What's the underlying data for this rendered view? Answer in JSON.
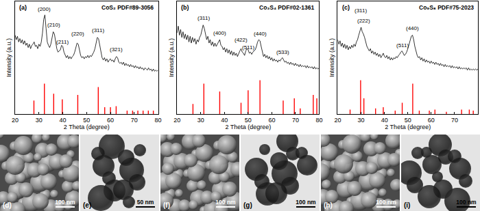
{
  "chart_data": [
    {
      "type": "line",
      "panel_label": "(a)",
      "title": "CoS₂ PDF#89-3056",
      "x_label": "2 Theta (degree)",
      "y_label": "Intensity (a.u.)",
      "xlim": [
        20,
        80
      ],
      "xticks": [
        20,
        30,
        40,
        50,
        60,
        70,
        80
      ],
      "ylim": [
        0,
        100
      ],
      "tick_labels": "x",
      "grid": false,
      "series": [
        {
          "type": "line",
          "color": "#000000",
          "x": [
            20,
            20.5,
            21,
            21.5,
            22,
            22.5,
            23,
            23.5,
            24,
            24.5,
            25,
            25.5,
            26,
            26.5,
            27,
            27.5,
            28,
            28.5,
            29,
            29.5,
            30,
            30.5,
            31,
            31.5,
            32,
            32.5,
            33,
            33.5,
            34,
            34.5,
            35,
            35.5,
            36,
            36.5,
            37,
            37.5,
            38,
            38.5,
            39,
            39.5,
            40,
            40.5,
            41,
            41.5,
            42,
            42.5,
            43,
            43.5,
            44,
            44.5,
            45,
            45.5,
            46,
            46.5,
            47,
            47.5,
            48,
            48.5,
            49,
            49.5,
            50,
            50.5,
            51,
            51.5,
            52,
            52.5,
            53,
            53.5,
            54,
            54.5,
            55,
            55.5,
            56,
            56.5,
            57,
            57.5,
            58,
            58.5,
            59,
            59.5,
            60,
            60.5,
            61,
            61.5,
            62,
            62.5,
            63,
            63.5,
            64,
            64.5,
            65,
            65.5,
            66,
            66.5,
            67,
            67.5,
            68,
            68.5,
            69,
            69.5,
            70,
            70.5,
            71,
            71.5,
            72,
            72.5,
            73,
            73.5,
            74,
            74.5,
            75,
            75.5,
            76,
            76.5,
            77,
            77.5,
            78,
            78.5,
            79,
            79.5,
            80
          ],
          "values": [
            70,
            66,
            69,
            64,
            67,
            63,
            66,
            62,
            65,
            61,
            63,
            59,
            62,
            58,
            61,
            62,
            64,
            60,
            61,
            58,
            62,
            60,
            64,
            72,
            84,
            88,
            76,
            64,
            61,
            59,
            62,
            68,
            73,
            71,
            63,
            58,
            55,
            56,
            57,
            61,
            60,
            55,
            52,
            50,
            52,
            49,
            51,
            49,
            51,
            52,
            55,
            59,
            63,
            62,
            57,
            52,
            50,
            51,
            49,
            51,
            50,
            52,
            50,
            52,
            51,
            53,
            55,
            58,
            63,
            68,
            67,
            61,
            54,
            50,
            48,
            50,
            47,
            49,
            46,
            48,
            49,
            47,
            48,
            46,
            49,
            51,
            50,
            46,
            45,
            46,
            44,
            46,
            43,
            45,
            43,
            44,
            42,
            44,
            42,
            43,
            41,
            43,
            41,
            42,
            40,
            42,
            40,
            41,
            39,
            41,
            40,
            39,
            41,
            39,
            40,
            38,
            40,
            38,
            39,
            38,
            39
          ]
        },
        {
          "type": "bar",
          "color": "#ff0000",
          "x": [
            27.9,
            32.3,
            36.2,
            39.8,
            46.3,
            54.9,
            57.6,
            60.0,
            62.4,
            67.0,
            69.3,
            71.5,
            73.7,
            75.9,
            78.0
          ],
          "values": [
            12,
            27,
            18,
            13,
            17,
            24,
            6,
            6,
            7,
            3,
            3,
            3,
            3,
            3,
            3
          ]
        }
      ],
      "annotations": [
        {
          "text": "(200)",
          "x": 32.3,
          "y": 93
        },
        {
          "text": "(210)",
          "x": 36.2,
          "y": 79
        },
        {
          "text": "(211)",
          "x": 39.8,
          "y": 64
        },
        {
          "text": "(220)",
          "x": 46.3,
          "y": 71
        },
        {
          "text": "(311)",
          "x": 54.9,
          "y": 74
        },
        {
          "text": "(321)",
          "x": 62.4,
          "y": 57
        }
      ]
    },
    {
      "type": "line",
      "panel_label": "(b)",
      "title": "Co₃S₄ PDF#02-1361",
      "x_label": "2 Theta (degree)",
      "y_label": "Intensity (a.u.)",
      "xlim": [
        20,
        80
      ],
      "xticks": [
        20,
        30,
        40,
        50,
        60,
        70,
        80
      ],
      "ylim": [
        0,
        100
      ],
      "tick_labels": "x",
      "grid": false,
      "series": [
        {
          "type": "line",
          "color": "#000000",
          "x": [
            20,
            20.5,
            21,
            21.5,
            22,
            22.5,
            23,
            23.5,
            24,
            24.5,
            25,
            25.5,
            26,
            26.5,
            27,
            27.5,
            28,
            28.5,
            29,
            29.5,
            30,
            30.5,
            31,
            31.5,
            32,
            32.5,
            33,
            33.5,
            34,
            34.5,
            35,
            35.5,
            36,
            36.5,
            37,
            37.5,
            38,
            38.5,
            39,
            39.5,
            40,
            40.5,
            41,
            41.5,
            42,
            42.5,
            43,
            43.5,
            44,
            44.5,
            45,
            45.5,
            46,
            46.5,
            47,
            47.5,
            48,
            48.5,
            49,
            49.5,
            50,
            50.5,
            51,
            51.5,
            52,
            52.5,
            53,
            53.5,
            54,
            54.5,
            55,
            55.5,
            56,
            56.5,
            57,
            57.5,
            58,
            58.5,
            59,
            59.5,
            60,
            60.5,
            61,
            61.5,
            62,
            62.5,
            63,
            63.5,
            64,
            64.5,
            65,
            65.5,
            66,
            66.5,
            67,
            67.5,
            68,
            68.5,
            69,
            69.5,
            70,
            70.5,
            71,
            71.5,
            72,
            72.5,
            73,
            73.5,
            74,
            74.5,
            75,
            75.5,
            76,
            76.5,
            77,
            77.5,
            78,
            78.5,
            79,
            79.5,
            80
          ],
          "values": [
            72,
            78,
            70,
            75,
            68,
            73,
            67,
            71,
            66,
            70,
            64,
            69,
            63,
            68,
            64,
            67,
            62,
            66,
            64,
            68,
            70,
            74,
            79,
            76,
            71,
            66,
            69,
            63,
            66,
            61,
            64,
            60,
            63,
            60,
            62,
            64,
            66,
            61,
            60,
            57,
            59,
            55,
            58,
            54,
            57,
            53,
            56,
            52,
            55,
            52,
            54,
            51,
            54,
            56,
            58,
            55,
            54,
            52,
            56,
            58,
            57,
            54,
            55,
            53,
            55,
            56,
            57,
            60,
            64,
            66,
            65,
            60,
            55,
            51,
            53,
            50,
            52,
            49,
            51,
            48,
            50,
            47,
            49,
            47,
            48,
            46,
            48,
            47,
            49,
            50,
            48,
            46,
            47,
            45,
            46,
            44,
            46,
            44,
            45,
            43,
            45,
            43,
            44,
            42,
            44,
            42,
            43,
            42,
            43,
            41,
            43,
            41,
            42,
            41,
            42,
            40,
            42,
            40,
            41,
            40,
            41
          ]
        },
        {
          "type": "bar",
          "color": "#ff0000",
          "x": [
            26.7,
            31.3,
            38.0,
            47.0,
            50.0,
            55.0,
            64.8,
            69.5,
            72.0,
            77.5,
            79.0
          ],
          "values": [
            9,
            27,
            20,
            10,
            21,
            30,
            12,
            14,
            5,
            17,
            14
          ]
        }
      ],
      "annotations": [
        {
          "text": "(311)",
          "x": 31.3,
          "y": 85
        },
        {
          "text": "(400)",
          "x": 38.0,
          "y": 72
        },
        {
          "text": "(422)",
          "x": 47.0,
          "y": 66
        },
        {
          "text": "(511)",
          "x": 50.0,
          "y": 59
        },
        {
          "text": "(440)",
          "x": 55.0,
          "y": 71
        },
        {
          "text": "(533)",
          "x": 64.8,
          "y": 55
        }
      ]
    },
    {
      "type": "line",
      "panel_label": "(c)",
      "title": "Co₉S₈ PDF#75-2023",
      "x_label": "2 Theta (degree)",
      "y_label": "Intensity (a.u.)",
      "xlim": [
        20,
        80
      ],
      "xticks": [
        20,
        30,
        40,
        50,
        60,
        70,
        80
      ],
      "ylim": [
        0,
        100
      ],
      "tick_labels": "x",
      "grid": false,
      "series": [
        {
          "type": "line",
          "color": "#000000",
          "x": [
            20,
            20.5,
            21,
            21.5,
            22,
            22.5,
            23,
            23.5,
            24,
            24.5,
            25,
            25.5,
            26,
            26.5,
            27,
            27.5,
            28,
            28.5,
            29,
            29.5,
            30,
            30.5,
            31,
            31.5,
            32,
            32.5,
            33,
            33.5,
            34,
            34.5,
            35,
            35.5,
            36,
            36.5,
            37,
            37.5,
            38,
            38.5,
            39,
            39.5,
            40,
            40.5,
            41,
            41.5,
            42,
            42.5,
            43,
            43.5,
            44,
            44.5,
            45,
            45.5,
            46,
            46.5,
            47,
            47.5,
            48,
            48.5,
            49,
            49.5,
            50,
            50.5,
            51,
            51.5,
            52,
            52.5,
            53,
            53.5,
            54,
            54.5,
            55,
            55.5,
            56,
            56.5,
            57,
            57.5,
            58,
            58.5,
            59,
            59.5,
            60,
            60.5,
            61,
            61.5,
            62,
            62.5,
            63,
            63.5,
            64,
            64.5,
            65,
            65.5,
            66,
            66.5,
            67,
            67.5,
            68,
            68.5,
            69,
            69.5,
            70,
            70.5,
            71,
            71.5,
            72,
            72.5,
            73,
            73.5,
            74,
            74.5,
            75,
            75.5,
            76,
            76.5,
            77,
            77.5,
            78,
            78.5,
            79,
            79.5,
            80
          ],
          "values": [
            66,
            62,
            65,
            60,
            63,
            59,
            62,
            58,
            61,
            57,
            60,
            58,
            61,
            59,
            62,
            60,
            64,
            66,
            70,
            74,
            77,
            73,
            71,
            68,
            64,
            60,
            58,
            56,
            58,
            54,
            56,
            53,
            55,
            52,
            54,
            51,
            53,
            50,
            52,
            54,
            51,
            50,
            52,
            49,
            51,
            48,
            50,
            48,
            50,
            49,
            51,
            50,
            52,
            53,
            55,
            56,
            54,
            52,
            53,
            55,
            58,
            62,
            66,
            69,
            70,
            66,
            60,
            55,
            52,
            50,
            51,
            48,
            50,
            47,
            49,
            46,
            48,
            46,
            47,
            45,
            47,
            45,
            46,
            44,
            46,
            44,
            45,
            43,
            45,
            43,
            44,
            42,
            44,
            42,
            43,
            42,
            43,
            41,
            43,
            41,
            42,
            41,
            42,
            40,
            42,
            40,
            41,
            40,
            41,
            40,
            41,
            39,
            41,
            39,
            40,
            39,
            40,
            39,
            40,
            39,
            40
          ]
        },
        {
          "type": "bar",
          "color": "#ff0000",
          "x": [
            25.3,
            29.8,
            31.2,
            36.2,
            39.5,
            44.6,
            47.6,
            52.1,
            54.9,
            59.2,
            61.6,
            66.5,
            73.0,
            76.3,
            78.0
          ],
          "values": [
            4,
            30,
            14,
            5,
            6,
            3,
            10,
            27,
            3,
            3,
            4,
            2,
            4,
            4,
            3
          ]
        }
      ],
      "annotations": [
        {
          "text": "(311)",
          "x": 29.8,
          "y": 92
        },
        {
          "text": "(222)",
          "x": 31.2,
          "y": 83
        },
        {
          "text": "(511)",
          "x": 47.6,
          "y": 61
        },
        {
          "text": "(440)",
          "x": 52.1,
          "y": 76
        }
      ]
    }
  ],
  "micrographs": [
    {
      "label": "(d)",
      "scale_bar": "100 nm"
    },
    {
      "label": "(e)",
      "scale_bar": "50 nm"
    },
    {
      "label": "(f)",
      "scale_bar": "100 nm"
    },
    {
      "label": "(g)",
      "scale_bar": "100 nm"
    },
    {
      "label": "(h)",
      "scale_bar": "100 nm"
    },
    {
      "label": "(i)",
      "scale_bar": "100 nm"
    }
  ]
}
